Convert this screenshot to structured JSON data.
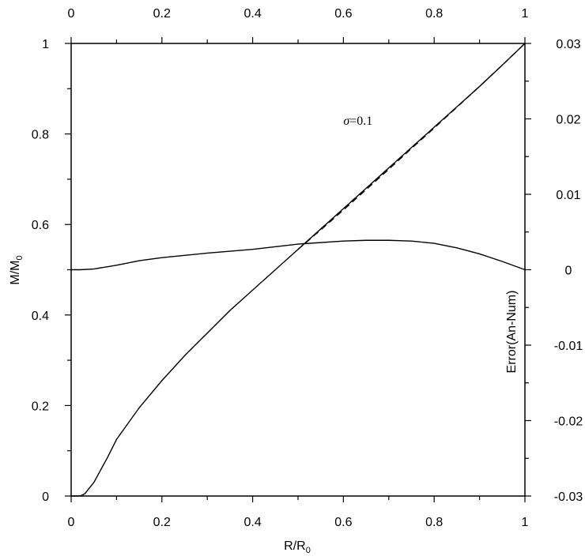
{
  "chart_data": {
    "type": "line",
    "xlabel": {
      "main": "R/R",
      "sub": "0"
    },
    "ylabel": {
      "main": "M/M",
      "sub": "0"
    },
    "y2label": "Error(An-Num)",
    "xlim": [
      0,
      1
    ],
    "ylim": [
      0,
      1
    ],
    "y2lim": [
      -0.03,
      0.03
    ],
    "x_ticks": [
      "0",
      "0.2",
      "0.4",
      "0.6",
      "0.8",
      "1"
    ],
    "x_tick_values": [
      0,
      0.2,
      0.4,
      0.6,
      0.8,
      1
    ],
    "y_ticks": [
      "0",
      "0.2",
      "0.4",
      "0.6",
      "0.8",
      "1"
    ],
    "y_tick_values": [
      0,
      0.2,
      0.4,
      0.6,
      0.8,
      1
    ],
    "y2_ticks": [
      "-0.03",
      "-0.02",
      "-0.01",
      "0",
      "0.01",
      "0.02",
      "0.03"
    ],
    "y2_tick_values": [
      -0.03,
      -0.02,
      -0.01,
      0,
      0.01,
      0.02,
      0.03
    ],
    "grid": false,
    "annotation": {
      "symbol": "σ",
      "text": "=0.1",
      "x": 0.6,
      "y": 0.82
    },
    "series": [
      {
        "axis": "left",
        "style": "solid",
        "x": [
          0,
          0.02,
          0.03,
          0.05,
          0.08,
          0.1,
          0.15,
          0.2,
          0.25,
          0.3,
          0.35,
          0.4,
          0.45,
          0.5,
          0.55,
          0.6,
          0.65,
          0.7,
          0.75,
          0.8,
          0.85,
          0.9,
          0.95,
          1.0
        ],
        "y": [
          0,
          0.0,
          0.005,
          0.03,
          0.085,
          0.125,
          0.195,
          0.255,
          0.31,
          0.36,
          0.41,
          0.455,
          0.5,
          0.545,
          0.59,
          0.635,
          0.68,
          0.725,
          0.77,
          0.815,
          0.86,
          0.905,
          0.952,
          1.0
        ]
      },
      {
        "axis": "left",
        "style": "dashed",
        "x": [
          0.5,
          0.55,
          0.6,
          0.65,
          0.7,
          0.75,
          0.8,
          0.85,
          0.9,
          0.95,
          1.0
        ],
        "y": [
          0.545,
          0.588,
          0.632,
          0.677,
          0.722,
          0.768,
          0.813,
          0.859,
          0.905,
          0.952,
          1.0
        ]
      },
      {
        "axis": "right",
        "style": "solid",
        "x": [
          0,
          0.02,
          0.05,
          0.1,
          0.15,
          0.2,
          0.3,
          0.4,
          0.5,
          0.6,
          0.65,
          0.7,
          0.75,
          0.8,
          0.85,
          0.9,
          0.95,
          1.0
        ],
        "y": [
          0.0,
          0.0,
          0.0001,
          0.0006,
          0.0012,
          0.0016,
          0.0022,
          0.0027,
          0.0034,
          0.0038,
          0.0039,
          0.0039,
          0.0038,
          0.0035,
          0.0029,
          0.0021,
          0.0011,
          0.0
        ]
      }
    ]
  }
}
